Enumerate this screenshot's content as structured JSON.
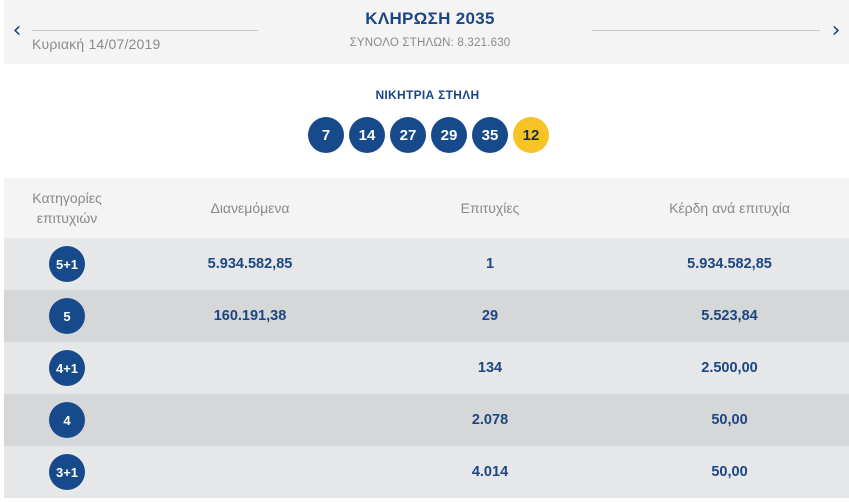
{
  "header": {
    "prev_icon": "‹",
    "next_icon": "›",
    "date": "Κυριακή 14/07/2019",
    "title": "ΚΛΗΡΩΣΗ 2035",
    "subtitle": "ΣΥΝΟΛΟ ΣΤΗΛΩΝ: 8.321.630"
  },
  "winning": {
    "label": "ΝΙΚΗΤΡΙΑ ΣΤΗΛΗ",
    "numbers": [
      "7",
      "14",
      "27",
      "29",
      "35"
    ],
    "bonus": "12",
    "colors": {
      "main": "#164a8a",
      "bonus": "#f7c326"
    }
  },
  "table": {
    "headers": {
      "category_line1": "Κατηγορίες",
      "category_line2": "επιτυχιών",
      "distributed": "Διανεμόμενα",
      "winners": "Επιτυχίες",
      "prize": "Κέρδη ανά επιτυχία"
    },
    "rows": [
      {
        "category": "5+1",
        "distributed": "5.934.582,85",
        "winners": "1",
        "prize": "5.934.582,85"
      },
      {
        "category": "5",
        "distributed": "160.191,38",
        "winners": "29",
        "prize": "5.523,84"
      },
      {
        "category": "4+1",
        "distributed": "",
        "winners": "134",
        "prize": "2.500,00"
      },
      {
        "category": "4",
        "distributed": "",
        "winners": "2.078",
        "prize": "50,00"
      },
      {
        "category": "3+1",
        "distributed": "",
        "winners": "4.014",
        "prize": "50,00"
      }
    ]
  }
}
